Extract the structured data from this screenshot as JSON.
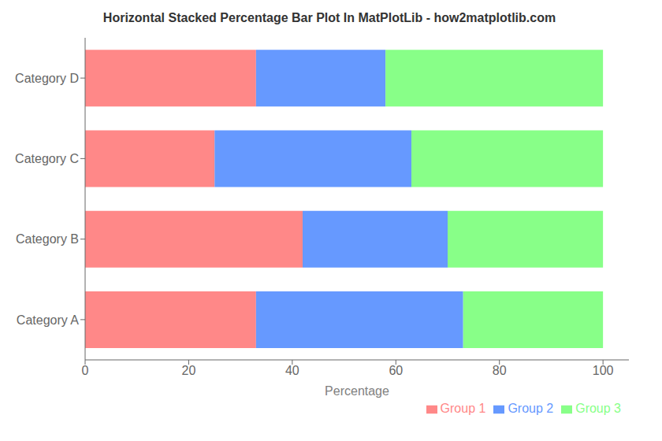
{
  "chart_data": {
    "type": "bar",
    "title": "Horizontal Stacked Percentage Bar Plot In MatPlotLib - how2matplotlib.com",
    "orientation": "horizontal",
    "stacked": true,
    "categories": [
      "Category A",
      "Category B",
      "Category C",
      "Category D"
    ],
    "series": [
      {
        "name": "Group 1",
        "color": "#FF8888",
        "values": [
          33,
          42,
          25,
          33
        ]
      },
      {
        "name": "Group 2",
        "color": "#6699FF",
        "values": [
          40,
          28,
          38,
          25
        ]
      },
      {
        "name": "Group 3",
        "color": "#88FF88",
        "values": [
          27,
          30,
          37,
          42
        ]
      }
    ],
    "xlabel": "Percentage",
    "xlim": [
      0,
      105
    ],
    "xticks": [
      0,
      20,
      40,
      60,
      80,
      100
    ],
    "legend": "lower right",
    "grid": false
  }
}
